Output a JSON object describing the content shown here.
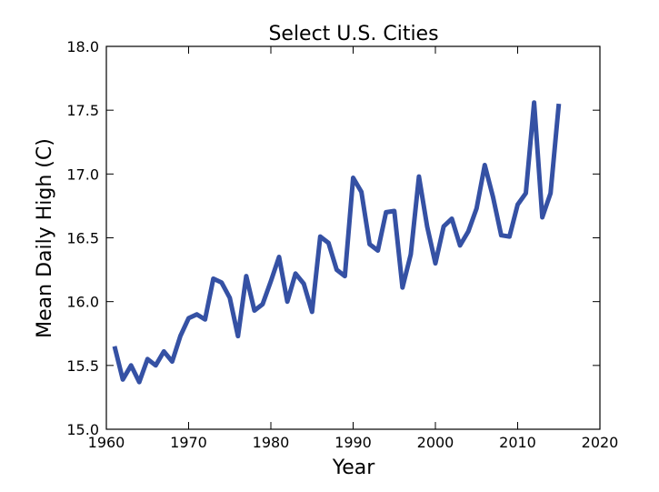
{
  "chart_data": {
    "type": "line",
    "title": "Select U.S. Cities",
    "xlabel": "Year",
    "ylabel": "Mean Daily High (C)",
    "xlim": [
      1960,
      2020
    ],
    "ylim": [
      15.0,
      18.0
    ],
    "xticks": [
      1960,
      1970,
      1980,
      1990,
      2000,
      2010,
      2020
    ],
    "yticks": [
      "15.0",
      "15.5",
      "16.0",
      "16.5",
      "17.0",
      "17.5",
      "18.0"
    ],
    "grid": false,
    "legend": "none",
    "line_color": "#3551a4",
    "series": [
      {
        "x": [
          1961,
          1962,
          1963,
          1964,
          1965,
          1966,
          1967,
          1968,
          1969,
          1970,
          1971,
          1972,
          1973,
          1974,
          1975,
          1976,
          1977,
          1978,
          1979,
          1980,
          1981,
          1982,
          1983,
          1984,
          1985,
          1986,
          1987,
          1988,
          1989,
          1990,
          1991,
          1992,
          1993,
          1994,
          1995,
          1996,
          1997,
          1998,
          1999,
          2000,
          2001,
          2002,
          2003,
          2004,
          2005,
          2006,
          2007,
          2008,
          2009,
          2010,
          2011,
          2012,
          2013,
          2014,
          2015
        ],
        "values": [
          15.65,
          15.39,
          15.5,
          15.37,
          15.55,
          15.5,
          15.61,
          15.53,
          15.73,
          15.87,
          15.9,
          15.86,
          16.18,
          16.15,
          16.03,
          15.73,
          16.2,
          15.93,
          15.98,
          16.16,
          16.35,
          16.0,
          16.22,
          16.14,
          15.92,
          16.51,
          16.46,
          16.25,
          16.2,
          16.97,
          16.86,
          16.45,
          16.4,
          16.7,
          16.71,
          16.11,
          16.37,
          16.98,
          16.59,
          16.3,
          16.59,
          16.65,
          16.44,
          16.55,
          16.73,
          17.07,
          16.82,
          16.52,
          16.51,
          16.76,
          16.85,
          17.56,
          16.66,
          16.85,
          17.55
        ]
      }
    ]
  }
}
